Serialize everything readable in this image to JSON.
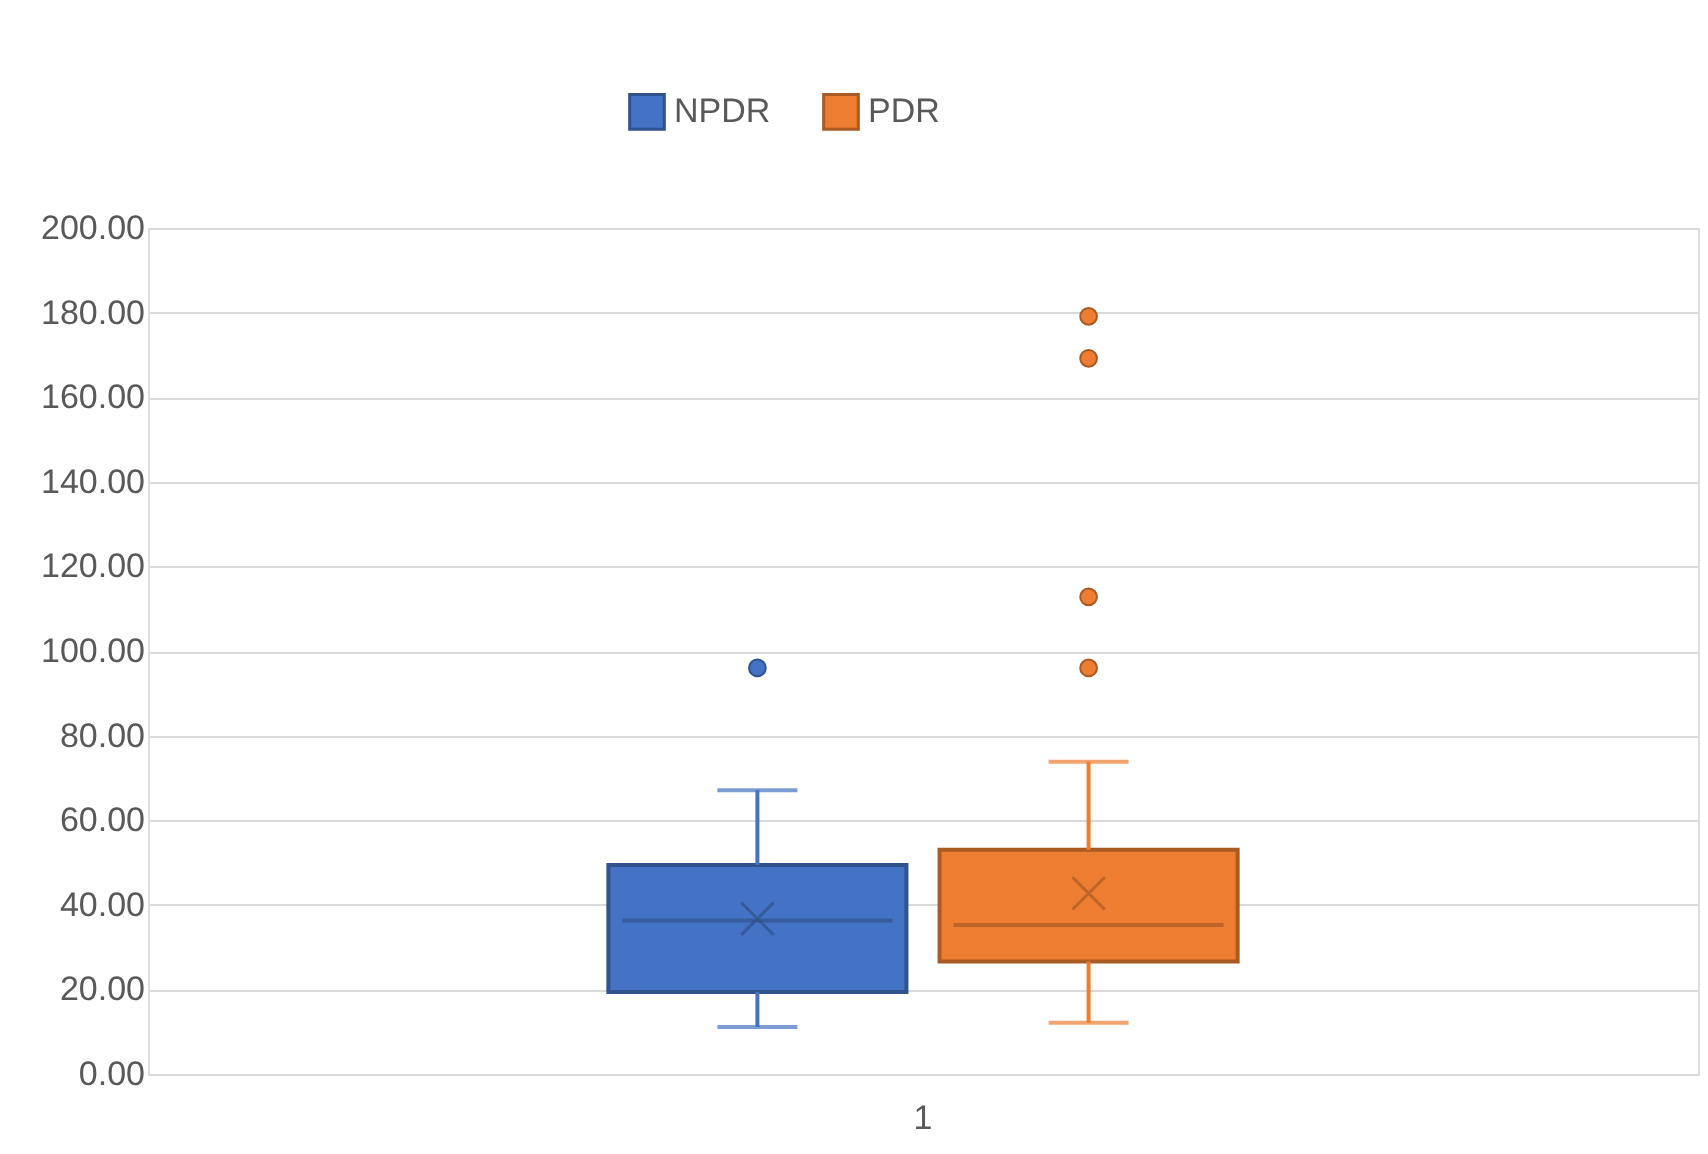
{
  "chart_data": {
    "type": "box",
    "categories": [
      "1"
    ],
    "series": [
      {
        "name": "NPDR",
        "color": "#4472c4",
        "boxes": [
          {
            "low": 11.1,
            "q1": 19.4,
            "median": 36.3,
            "q3": 49.4,
            "high": 67.1,
            "mean": 36.7,
            "outliers": [
              96
            ]
          }
        ]
      },
      {
        "name": "PDR",
        "color": "#ed7d31",
        "boxes": [
          {
            "low": 12.1,
            "q1": 26.6,
            "median": 35.2,
            "q3": 53,
            "high": 73.8,
            "mean": 42.7,
            "outliers": [
              96,
              112.8,
              169.2,
              179.1
            ]
          }
        ]
      }
    ],
    "ylim": [
      0,
      200
    ],
    "yticks": [
      {
        "value": 0,
        "label": "0.00"
      },
      {
        "value": 20,
        "label": "20.00"
      },
      {
        "value": 40,
        "label": "40.00"
      },
      {
        "value": 60,
        "label": "60.00"
      },
      {
        "value": 80,
        "label": "80.00"
      },
      {
        "value": 100,
        "label": "100.00"
      },
      {
        "value": 120,
        "label": "120.00"
      },
      {
        "value": 140,
        "label": "140.00"
      },
      {
        "value": 160,
        "label": "160.00"
      },
      {
        "value": 180,
        "label": "180.00"
      },
      {
        "value": 200,
        "label": "200.00"
      }
    ],
    "grid": "y",
    "legend": "top",
    "marker": "circle"
  }
}
